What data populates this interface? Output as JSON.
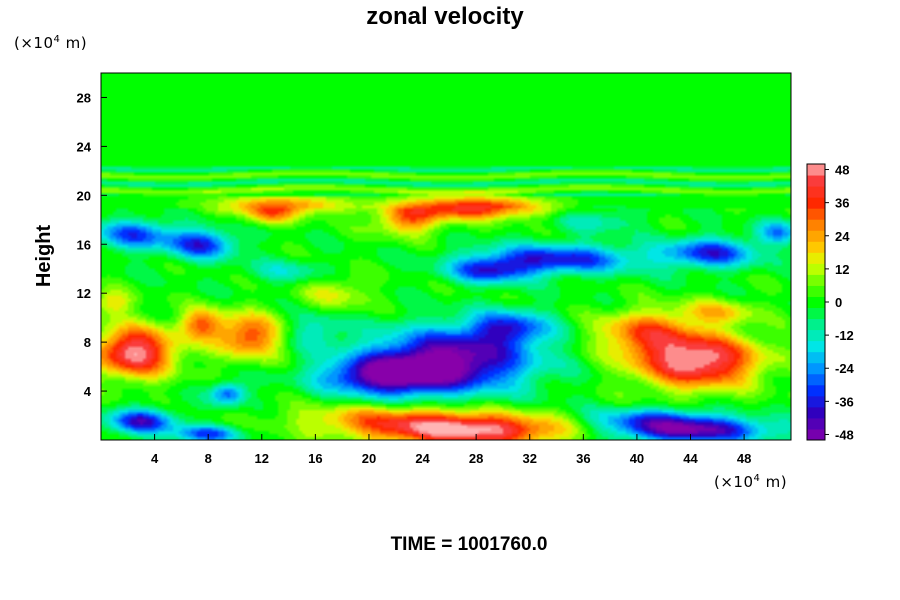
{
  "chart_data": {
    "type": "heatmap",
    "title": "zonal velocity",
    "ylabel": "Height",
    "xlabel": "",
    "x_unit": {
      "prefix": "(×10",
      "exp": "4",
      "suffix": " m)"
    },
    "y_unit": {
      "prefix": "(×10",
      "exp": "4",
      "suffix": " m)"
    },
    "xlim": [
      0,
      51.5
    ],
    "ylim": [
      0,
      30
    ],
    "x_ticks": [
      4,
      8,
      12,
      16,
      20,
      24,
      28,
      32,
      36,
      40,
      44,
      48
    ],
    "y_ticks": [
      4,
      8,
      12,
      16,
      20,
      24,
      28
    ],
    "colorbar": {
      "min": -50,
      "max": 50,
      "ticks": [
        48,
        36,
        24,
        12,
        0,
        -12,
        -24,
        -36,
        -48
      ]
    },
    "footer": "TIME = 1001760.0",
    "features": [
      {
        "x": 2.5,
        "y": 7.2,
        "value": 50,
        "sx": 3.0,
        "sy": 2.0
      },
      {
        "x": 44.5,
        "y": 6.5,
        "value": 52,
        "sx": 4.5,
        "sy": 2.2
      },
      {
        "x": 40.5,
        "y": 8.8,
        "value": 28,
        "sx": 3.5,
        "sy": 1.8
      },
      {
        "x": 27.5,
        "y": 0.8,
        "value": 50,
        "sx": 7.5,
        "sy": 1.3
      },
      {
        "x": 21.0,
        "y": 1.8,
        "value": 20,
        "sx": 7.0,
        "sy": 1.2
      },
      {
        "x": 28.0,
        "y": 19.0,
        "value": 40,
        "sx": 5.0,
        "sy": 0.9
      },
      {
        "x": 23.0,
        "y": 18.0,
        "value": 28,
        "sx": 2.5,
        "sy": 1.2
      },
      {
        "x": 13.5,
        "y": 19.2,
        "value": 26,
        "sx": 5.0,
        "sy": 0.8
      },
      {
        "x": 12.5,
        "y": 18.3,
        "value": 20,
        "sx": 1.8,
        "sy": 0.8
      },
      {
        "x": 11.0,
        "y": 8.5,
        "value": 34,
        "sx": 2.5,
        "sy": 1.8
      },
      {
        "x": 7.5,
        "y": 9.5,
        "value": 28,
        "sx": 1.6,
        "sy": 1.2
      },
      {
        "x": 17.5,
        "y": 12.0,
        "value": 14,
        "sx": 2.5,
        "sy": 1.5
      },
      {
        "x": 26.0,
        "y": 6.5,
        "value": -52,
        "sx": 6.0,
        "sy": 2.5
      },
      {
        "x": 21.0,
        "y": 5.2,
        "value": -40,
        "sx": 4.5,
        "sy": 1.5
      },
      {
        "x": 30.5,
        "y": 9.2,
        "value": -30,
        "sx": 3.0,
        "sy": 1.4
      },
      {
        "x": 44.0,
        "y": 0.8,
        "value": -46,
        "sx": 6.0,
        "sy": 1.0
      },
      {
        "x": 41.0,
        "y": 1.8,
        "value": -22,
        "sx": 5.0,
        "sy": 0.9
      },
      {
        "x": 3.0,
        "y": 1.5,
        "value": -38,
        "sx": 2.5,
        "sy": 1.0
      },
      {
        "x": 8.0,
        "y": 0.5,
        "value": -30,
        "sx": 2.5,
        "sy": 0.7
      },
      {
        "x": 34.0,
        "y": 14.8,
        "value": -36,
        "sx": 6.0,
        "sy": 1.2
      },
      {
        "x": 29.0,
        "y": 13.8,
        "value": -30,
        "sx": 3.0,
        "sy": 1.0
      },
      {
        "x": 45.5,
        "y": 15.3,
        "value": -34,
        "sx": 3.5,
        "sy": 1.2
      },
      {
        "x": 50.5,
        "y": 17.0,
        "value": -22,
        "sx": 1.6,
        "sy": 1.0
      },
      {
        "x": 2.5,
        "y": 16.8,
        "value": -30,
        "sx": 3.0,
        "sy": 1.2
      },
      {
        "x": 7.5,
        "y": 16.0,
        "value": -34,
        "sx": 2.5,
        "sy": 1.2
      },
      {
        "x": 14.0,
        "y": 13.8,
        "value": -12,
        "sx": 3.0,
        "sy": 1.0
      },
      {
        "x": 9.5,
        "y": 3.8,
        "value": -30,
        "sx": 1.3,
        "sy": 0.9
      },
      {
        "x": 16.0,
        "y": 9.0,
        "value": -14,
        "sx": 2.0,
        "sy": 1.5
      },
      {
        "x": 46.0,
        "y": 10.5,
        "value": 18,
        "sx": 3.0,
        "sy": 1.0
      },
      {
        "x": 0.8,
        "y": 11.2,
        "value": 18,
        "sx": 1.5,
        "sy": 1.0
      },
      {
        "x": 37.0,
        "y": 18.0,
        "value": -12,
        "sx": 3.0,
        "sy": 1.0
      }
    ]
  }
}
